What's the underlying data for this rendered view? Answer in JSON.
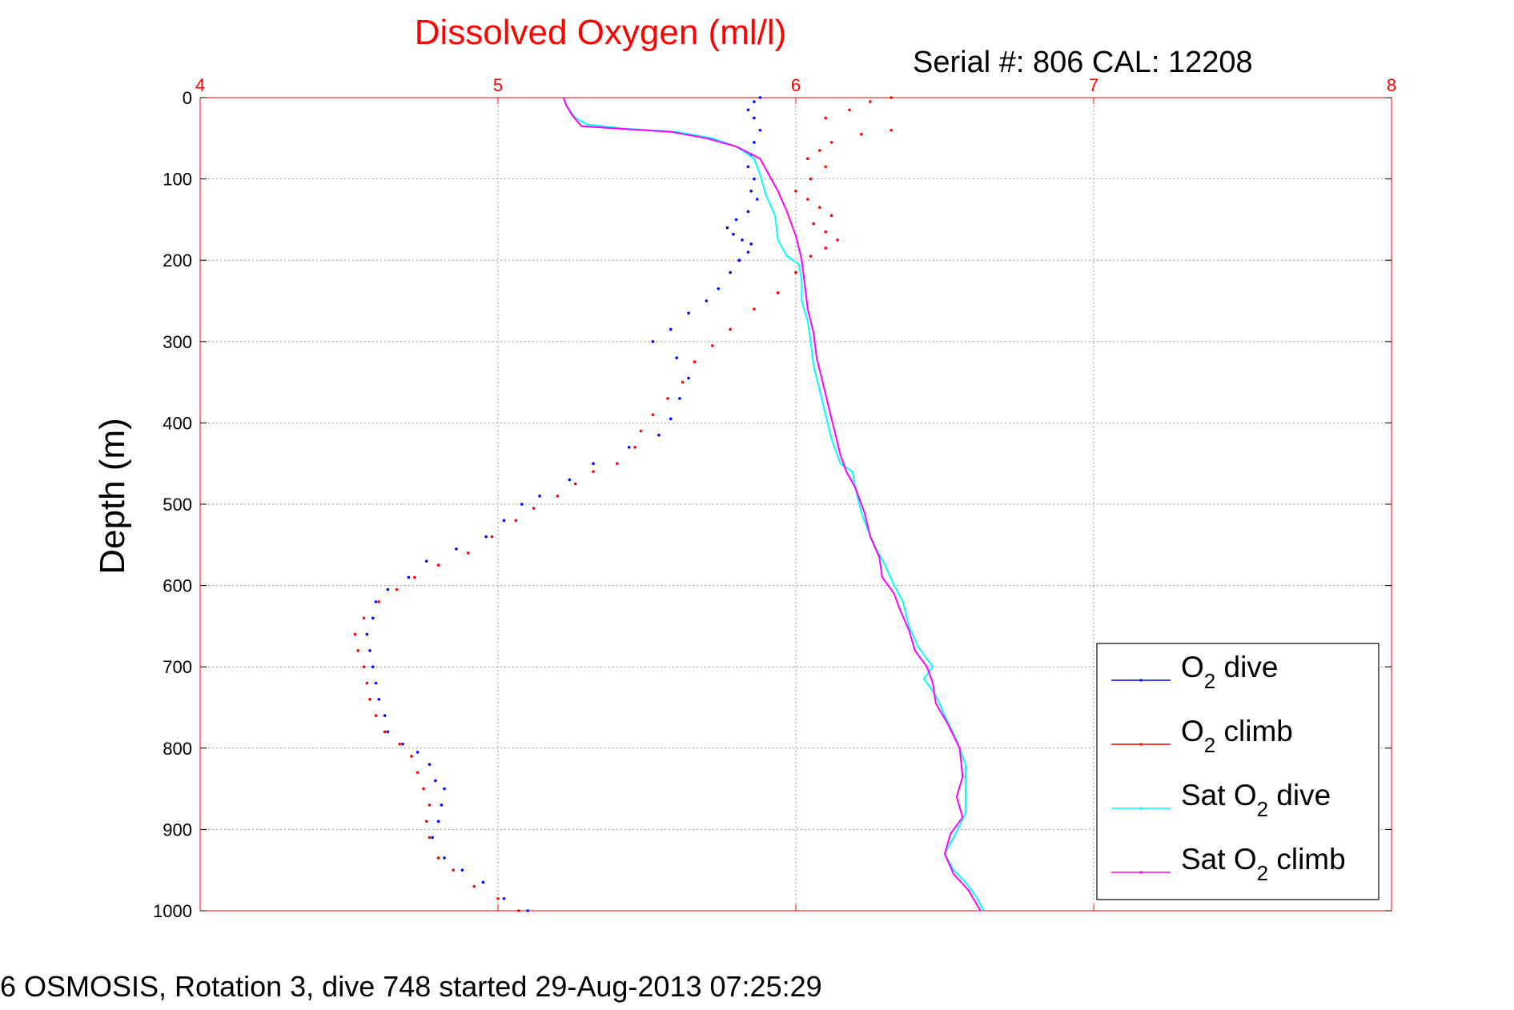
{
  "chart_data": {
    "type": "line",
    "title": "Dissolved Oxygen (ml/l)",
    "subtitle": "Serial #: 806  CAL: 12208",
    "footer": "6 OSMOSIS, Rotation 3, dive 748 started 29-Aug-2013 07:25:29",
    "ylabel": "Depth (m)",
    "xlabel": "",
    "x_axis_position": "top",
    "y_reversed": true,
    "xlim": [
      4,
      8
    ],
    "ylim": [
      0,
      1000
    ],
    "x_ticks": [
      "4",
      "5",
      "6",
      "7",
      "8"
    ],
    "y_ticks": [
      "0",
      "100",
      "200",
      "300",
      "400",
      "500",
      "600",
      "700",
      "800",
      "900",
      "1000"
    ],
    "grid": true,
    "legend_placement": "lower-right",
    "colors": {
      "title": "#ff0000",
      "x_ticks": "#ff0000",
      "axes": "#ff0000",
      "grid": "#9a9a9a",
      "text": "#000000"
    },
    "series": [
      {
        "name": "O2 dive",
        "legend_main": "O",
        "legend_sub": "2",
        "legend_rest": " dive",
        "color": "#0000ff",
        "style": "dots",
        "points": [
          [
            5.88,
            0
          ],
          [
            5.86,
            5
          ],
          [
            5.84,
            15
          ],
          [
            5.86,
            25
          ],
          [
            5.88,
            40
          ],
          [
            5.86,
            55
          ],
          [
            5.85,
            70
          ],
          [
            5.84,
            85
          ],
          [
            5.86,
            100
          ],
          [
            5.85,
            115
          ],
          [
            5.87,
            125
          ],
          [
            5.84,
            140
          ],
          [
            5.8,
            150
          ],
          [
            5.77,
            160
          ],
          [
            5.79,
            168
          ],
          [
            5.82,
            175
          ],
          [
            5.85,
            180
          ],
          [
            5.84,
            190
          ],
          [
            5.81,
            200
          ],
          [
            5.78,
            215
          ],
          [
            5.74,
            235
          ],
          [
            5.7,
            250
          ],
          [
            5.64,
            265
          ],
          [
            5.58,
            285
          ],
          [
            5.52,
            300
          ],
          [
            5.6,
            320
          ],
          [
            5.64,
            345
          ],
          [
            5.61,
            370
          ],
          [
            5.58,
            395
          ],
          [
            5.54,
            415
          ],
          [
            5.44,
            430
          ],
          [
            5.32,
            450
          ],
          [
            5.24,
            470
          ],
          [
            5.14,
            490
          ],
          [
            5.08,
            500
          ],
          [
            5.02,
            520
          ],
          [
            4.96,
            540
          ],
          [
            4.86,
            555
          ],
          [
            4.76,
            570
          ],
          [
            4.7,
            590
          ],
          [
            4.63,
            605
          ],
          [
            4.59,
            620
          ],
          [
            4.58,
            640
          ],
          [
            4.56,
            660
          ],
          [
            4.57,
            680
          ],
          [
            4.58,
            700
          ],
          [
            4.59,
            720
          ],
          [
            4.6,
            740
          ],
          [
            4.62,
            760
          ],
          [
            4.63,
            780
          ],
          [
            4.68,
            795
          ],
          [
            4.73,
            805
          ],
          [
            4.77,
            820
          ],
          [
            4.79,
            840
          ],
          [
            4.82,
            850
          ],
          [
            4.81,
            870
          ],
          [
            4.8,
            890
          ],
          [
            4.78,
            910
          ],
          [
            4.82,
            935
          ],
          [
            4.88,
            950
          ],
          [
            4.95,
            965
          ],
          [
            5.02,
            985
          ],
          [
            5.1,
            1000
          ]
        ]
      },
      {
        "name": "O2 climb",
        "legend_main": "O",
        "legend_sub": "2",
        "legend_rest": " climb",
        "color": "#ff0000",
        "style": "dots",
        "points": [
          [
            6.32,
            0
          ],
          [
            6.25,
            5
          ],
          [
            6.18,
            15
          ],
          [
            6.1,
            25
          ],
          [
            6.32,
            40
          ],
          [
            6.22,
            45
          ],
          [
            6.12,
            55
          ],
          [
            6.08,
            65
          ],
          [
            6.04,
            75
          ],
          [
            6.1,
            85
          ],
          [
            6.05,
            100
          ],
          [
            6.0,
            115
          ],
          [
            6.04,
            125
          ],
          [
            6.08,
            135
          ],
          [
            6.12,
            145
          ],
          [
            6.06,
            155
          ],
          [
            6.1,
            165
          ],
          [
            6.14,
            175
          ],
          [
            6.1,
            185
          ],
          [
            6.05,
            195
          ],
          [
            6.0,
            215
          ],
          [
            5.94,
            240
          ],
          [
            5.86,
            260
          ],
          [
            5.78,
            285
          ],
          [
            5.72,
            305
          ],
          [
            5.66,
            325
          ],
          [
            5.62,
            350
          ],
          [
            5.57,
            370
          ],
          [
            5.52,
            390
          ],
          [
            5.48,
            410
          ],
          [
            5.46,
            430
          ],
          [
            5.4,
            450
          ],
          [
            5.32,
            460
          ],
          [
            5.26,
            475
          ],
          [
            5.2,
            490
          ],
          [
            5.12,
            505
          ],
          [
            5.06,
            520
          ],
          [
            4.98,
            540
          ],
          [
            4.9,
            560
          ],
          [
            4.8,
            575
          ],
          [
            4.72,
            590
          ],
          [
            4.66,
            605
          ],
          [
            4.6,
            620
          ],
          [
            4.55,
            640
          ],
          [
            4.52,
            660
          ],
          [
            4.53,
            680
          ],
          [
            4.55,
            700
          ],
          [
            4.56,
            720
          ],
          [
            4.57,
            740
          ],
          [
            4.59,
            760
          ],
          [
            4.62,
            780
          ],
          [
            4.67,
            795
          ],
          [
            4.71,
            810
          ],
          [
            4.73,
            830
          ],
          [
            4.75,
            850
          ],
          [
            4.77,
            870
          ],
          [
            4.76,
            890
          ],
          [
            4.77,
            910
          ],
          [
            4.8,
            935
          ],
          [
            4.85,
            950
          ],
          [
            4.92,
            970
          ],
          [
            5.0,
            985
          ],
          [
            5.07,
            1000
          ]
        ]
      },
      {
        "name": "Sat O2 dive",
        "legend_main": "Sat O",
        "legend_sub": "2",
        "legend_rest": " dive",
        "color": "#00ffff",
        "style": "line",
        "points": [
          [
            5.22,
            0
          ],
          [
            5.23,
            10
          ],
          [
            5.26,
            25
          ],
          [
            5.3,
            33
          ],
          [
            5.42,
            38
          ],
          [
            5.6,
            42
          ],
          [
            5.72,
            50
          ],
          [
            5.8,
            60
          ],
          [
            5.86,
            75
          ],
          [
            5.88,
            95
          ],
          [
            5.9,
            120
          ],
          [
            5.93,
            145
          ],
          [
            5.94,
            175
          ],
          [
            5.97,
            195
          ],
          [
            6.01,
            205
          ],
          [
            6.02,
            225
          ],
          [
            6.02,
            250
          ],
          [
            6.04,
            275
          ],
          [
            6.05,
            300
          ],
          [
            6.06,
            330
          ],
          [
            6.08,
            360
          ],
          [
            6.1,
            390
          ],
          [
            6.12,
            420
          ],
          [
            6.15,
            450
          ],
          [
            6.19,
            460
          ],
          [
            6.2,
            480
          ],
          [
            6.22,
            510
          ],
          [
            6.24,
            530
          ],
          [
            6.27,
            555
          ],
          [
            6.3,
            575
          ],
          [
            6.33,
            600
          ],
          [
            6.36,
            620
          ],
          [
            6.38,
            650
          ],
          [
            6.41,
            675
          ],
          [
            6.46,
            700
          ],
          [
            6.43,
            715
          ],
          [
            6.47,
            735
          ],
          [
            6.5,
            760
          ],
          [
            6.54,
            790
          ],
          [
            6.57,
            820
          ],
          [
            6.57,
            850
          ],
          [
            6.57,
            880
          ],
          [
            6.53,
            910
          ],
          [
            6.5,
            930
          ],
          [
            6.53,
            950
          ],
          [
            6.57,
            965
          ],
          [
            6.61,
            985
          ],
          [
            6.63,
            1000
          ]
        ]
      },
      {
        "name": "Sat O2 climb",
        "legend_main": "Sat O",
        "legend_sub": "2",
        "legend_rest": " climb",
        "color": "#ff00ff",
        "style": "line",
        "points": [
          [
            5.22,
            0
          ],
          [
            5.23,
            10
          ],
          [
            5.25,
            22
          ],
          [
            5.28,
            35
          ],
          [
            5.4,
            38
          ],
          [
            5.58,
            42
          ],
          [
            5.7,
            50
          ],
          [
            5.8,
            60
          ],
          [
            5.88,
            75
          ],
          [
            5.91,
            95
          ],
          [
            5.94,
            115
          ],
          [
            5.97,
            140
          ],
          [
            6.0,
            170
          ],
          [
            6.02,
            200
          ],
          [
            6.03,
            230
          ],
          [
            6.04,
            260
          ],
          [
            6.06,
            290
          ],
          [
            6.07,
            320
          ],
          [
            6.09,
            350
          ],
          [
            6.11,
            380
          ],
          [
            6.13,
            410
          ],
          [
            6.15,
            440
          ],
          [
            6.17,
            460
          ],
          [
            6.2,
            480
          ],
          [
            6.23,
            510
          ],
          [
            6.25,
            540
          ],
          [
            6.28,
            565
          ],
          [
            6.29,
            590
          ],
          [
            6.33,
            610
          ],
          [
            6.35,
            630
          ],
          [
            6.38,
            655
          ],
          [
            6.4,
            680
          ],
          [
            6.44,
            700
          ],
          [
            6.46,
            720
          ],
          [
            6.47,
            745
          ],
          [
            6.51,
            770
          ],
          [
            6.55,
            800
          ],
          [
            6.56,
            835
          ],
          [
            6.54,
            860
          ],
          [
            6.56,
            885
          ],
          [
            6.52,
            905
          ],
          [
            6.5,
            930
          ],
          [
            6.53,
            955
          ],
          [
            6.58,
            975
          ],
          [
            6.62,
            1000
          ]
        ]
      }
    ]
  }
}
